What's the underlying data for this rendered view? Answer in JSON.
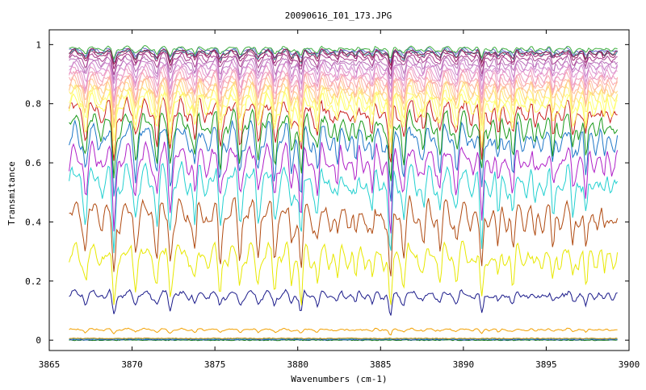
{
  "chart_data": {
    "type": "line",
    "title": "20090616_I01_173.JPG",
    "xlabel": "Wavenumbers (cm-1)",
    "ylabel": "Transmitance",
    "xlim": [
      3865,
      3900
    ],
    "ylim": [
      -0.035,
      1.05
    ],
    "x_ticks": [
      3865,
      3870,
      3875,
      3880,
      3885,
      3890,
      3895,
      3900
    ],
    "x_tick_labels": [
      "3865",
      "3870",
      "3875",
      "3880",
      "3885",
      "3890",
      "3895",
      "3900"
    ],
    "y_ticks": [
      0,
      0.2,
      0.4,
      0.6,
      0.8,
      1
    ],
    "y_tick_labels": [
      "0",
      "0.2",
      "0.4",
      "0.6",
      "0.8",
      "1"
    ],
    "grid": false,
    "legend": "none",
    "x_range_of_data": [
      3866.2,
      3899.3
    ],
    "absorption_lines_cm-1": [
      3867.2,
      3868.9,
      3870.2,
      3871.5,
      3872.3,
      3873.8,
      3875.3,
      3876.5,
      3877.6,
      3878.6,
      3879.6,
      3880.2,
      3881.2,
      3882.4,
      3883.5,
      3884.5,
      3885.6,
      3886.4,
      3887.6,
      3888.6,
      3889.6,
      3891.1,
      3892.1,
      3893.0,
      3894.3,
      3895.4,
      3896.6,
      3897.4,
      3898.5
    ],
    "absorption_line_depths": [
      0.35,
      0.8,
      0.35,
      0.4,
      0.5,
      0.45,
      0.55,
      0.4,
      0.35,
      0.45,
      0.35,
      0.75,
      0.4,
      0.35,
      0.35,
      0.4,
      0.95,
      0.4,
      0.3,
      0.35,
      0.3,
      0.8,
      0.45,
      0.5,
      0.3,
      0.45,
      0.35,
      0.55,
      0.3
    ],
    "series": [
      {
        "color": "#1a7a1a",
        "base": 0.0,
        "depth": 0.0,
        "noise": 0.003
      },
      {
        "color": "#1f4fb8",
        "base": 0.002,
        "depth": 0.0,
        "noise": 0.003
      },
      {
        "color": "#2aa0c0",
        "base": 0.004,
        "depth": 0.0,
        "noise": 0.003
      },
      {
        "color": "#cc8800",
        "base": 0.006,
        "depth": 0.0,
        "noise": 0.003
      },
      {
        "color": "#f2a000",
        "base": 0.04,
        "depth": 0.02,
        "noise": 0.004
      },
      {
        "color": "#1a1a8a",
        "base": 0.17,
        "depth": 0.08,
        "noise": 0.01
      },
      {
        "color": "#e8e800",
        "base": 0.33,
        "depth": 0.22,
        "noise": 0.02
      },
      {
        "color": "#b04a10",
        "base": 0.48,
        "depth": 0.28,
        "noise": 0.02
      },
      {
        "color": "#22d0d0",
        "base": 0.6,
        "depth": 0.3,
        "noise": 0.02
      },
      {
        "color": "#b020c8",
        "base": 0.67,
        "depth": 0.28,
        "noise": 0.02
      },
      {
        "color": "#1f78c8",
        "base": 0.74,
        "depth": 0.27,
        "noise": 0.02
      },
      {
        "color": "#1a9a1a",
        "base": 0.78,
        "depth": 0.25,
        "noise": 0.02
      },
      {
        "color": "#c81e1e",
        "base": 0.82,
        "depth": 0.22,
        "noise": 0.02
      },
      {
        "color": "#ffff60",
        "base": 0.84,
        "depth": 0.2,
        "noise": 0.015
      },
      {
        "color": "#ffff80",
        "base": 0.855,
        "depth": 0.18,
        "noise": 0.015
      },
      {
        "color": "#ffee70",
        "base": 0.87,
        "depth": 0.17,
        "noise": 0.015
      },
      {
        "color": "#ffd880",
        "base": 0.88,
        "depth": 0.16,
        "noise": 0.014
      },
      {
        "color": "#ffc890",
        "base": 0.89,
        "depth": 0.15,
        "noise": 0.014
      },
      {
        "color": "#ffb8a0",
        "base": 0.9,
        "depth": 0.14,
        "noise": 0.013
      },
      {
        "color": "#f8a8b0",
        "base": 0.91,
        "depth": 0.13,
        "noise": 0.013
      },
      {
        "color": "#f0a0c0",
        "base": 0.92,
        "depth": 0.12,
        "noise": 0.012
      },
      {
        "color": "#e898c8",
        "base": 0.93,
        "depth": 0.11,
        "noise": 0.012
      },
      {
        "color": "#d890d0",
        "base": 0.94,
        "depth": 0.1,
        "noise": 0.011
      },
      {
        "color": "#c880c8",
        "base": 0.95,
        "depth": 0.09,
        "noise": 0.01
      },
      {
        "color": "#b870b8",
        "base": 0.96,
        "depth": 0.08,
        "noise": 0.009
      },
      {
        "color": "#a84090",
        "base": 0.97,
        "depth": 0.07,
        "noise": 0.008
      },
      {
        "color": "#9a2070",
        "base": 0.98,
        "depth": 0.06,
        "noise": 0.007
      },
      {
        "color": "#3a9a9a",
        "base": 0.985,
        "depth": 0.05,
        "noise": 0.006
      },
      {
        "color": "#6a6ad0",
        "base": 0.99,
        "depth": 0.045,
        "noise": 0.006
      },
      {
        "color": "#40b040",
        "base": 0.995,
        "depth": 0.04,
        "noise": 0.005
      },
      {
        "color": "#8a1a4a",
        "base": 0.985,
        "depth": 0.05,
        "noise": 0.006
      }
    ]
  }
}
